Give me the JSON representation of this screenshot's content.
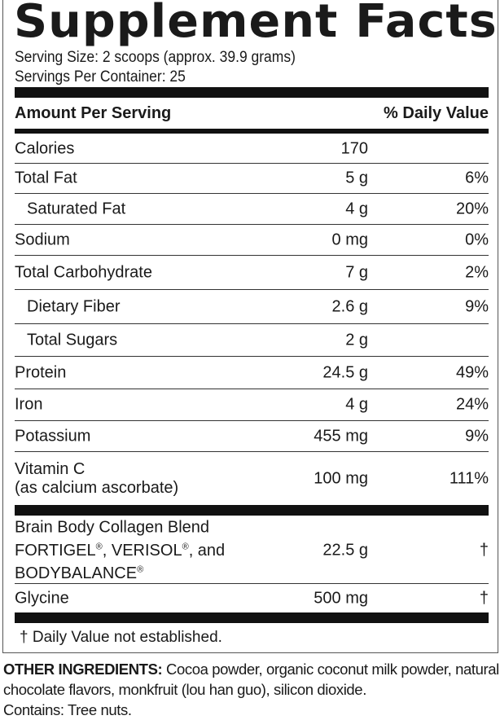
{
  "title": "Supplement Facts",
  "serving_size": "Serving Size: 2 scoops (approx. 39.9 grams)",
  "servings_per_container": "Servings Per Container: 25",
  "header": {
    "amount": "Amount Per Serving",
    "dv": "% Daily Value"
  },
  "rows": [
    {
      "name": "Calories",
      "amount": "170",
      "dv": ""
    },
    {
      "name": "Total Fat",
      "amount": "5 g",
      "dv": "6%"
    },
    {
      "name": "Saturated Fat",
      "amount": "4 g",
      "dv": "20%"
    },
    {
      "name": "Sodium",
      "amount": "0 mg",
      "dv": "0%"
    },
    {
      "name": "Total Carbohydrate",
      "amount": "7 g",
      "dv": "2%"
    },
    {
      "name": "Dietary Fiber",
      "amount": "2.6 g",
      "dv": "9%"
    },
    {
      "name": "Total Sugars",
      "amount": "2 g",
      "dv": ""
    },
    {
      "name": "Protein",
      "amount": "24.5 g",
      "dv": "49%"
    },
    {
      "name": "Iron",
      "amount": "4 g",
      "dv": "24%"
    },
    {
      "name": "Potassium",
      "amount": "455 mg",
      "dv": "9%"
    },
    {
      "name": "Vitamin C",
      "sub": "(as calcium ascorbate)",
      "amount": "100 mg",
      "dv": "111%"
    }
  ],
  "blend": {
    "line1": "Brain Body Collagen Blend",
    "line2a": "FORTIGEL",
    "line2b": ", VERISOL",
    "line2c": ", and",
    "line3": "BODYBALANCE",
    "reg": "®",
    "amount": "22.5 g",
    "dv": "†"
  },
  "glycine": {
    "name": "Glycine",
    "amount": "500 mg",
    "dv": "†"
  },
  "footnote": "† Daily Value not established.",
  "other_label": "OTHER INGREDIENTS:",
  "other_text": " Cocoa powder, organic coconut milk powder, natural chocolate flavors, monkfruit (lou han guo), silicon dioxide.",
  "contains": "Contains: Tree nuts."
}
